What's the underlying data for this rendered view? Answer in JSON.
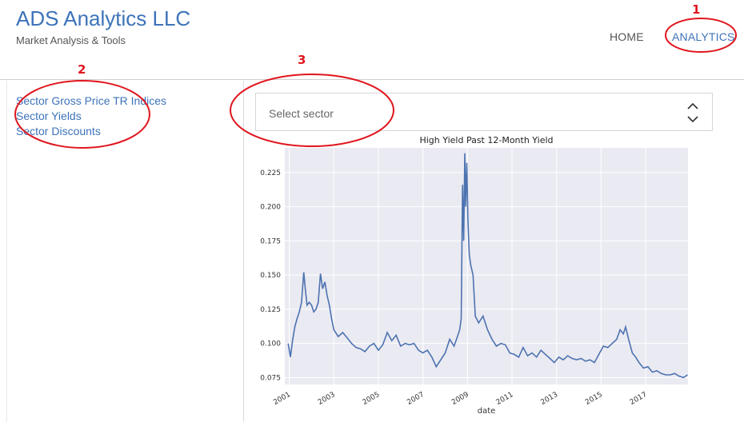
{
  "header": {
    "title": "ADS Analytics LLC",
    "subtitle": "Market Analysis & Tools",
    "nav": {
      "home": "HOME",
      "analytics": "ANALYTICS"
    }
  },
  "sidebar": {
    "links": [
      "Sector Gross Price TR Indices",
      "Sector Yields",
      "Sector Discounts"
    ]
  },
  "selector": {
    "placeholder": "Select sector"
  },
  "annotations": {
    "one": "1",
    "two": "2",
    "three": "3",
    "color": "#e0161e"
  },
  "colors": {
    "accent": "#3d73b9",
    "plot_bg": "#eaeaf2",
    "line": "#4c72b0"
  },
  "chart_data": {
    "type": "line",
    "title": "High Yield Past 12-Month Yield",
    "xlabel": "date",
    "ylabel": "",
    "xlim": [
      2000.8,
      2018.9
    ],
    "ylim": [
      0.07,
      0.243
    ],
    "xticks": [
      "2001",
      "2003",
      "2005",
      "2007",
      "2009",
      "2011",
      "2013",
      "2015",
      "2017"
    ],
    "yticks": [
      "0.075",
      "0.100",
      "0.125",
      "0.150",
      "0.175",
      "0.200",
      "0.225"
    ],
    "grid": true,
    "series": [
      {
        "x": [
          2000.95,
          2001.05,
          2001.15,
          2001.25,
          2001.35,
          2001.45,
          2001.55,
          2001.65,
          2001.72,
          2001.8,
          2001.9,
          2002.0,
          2002.1,
          2002.2,
          2002.3,
          2002.4,
          2002.5,
          2002.6,
          2002.7,
          2002.8,
          2002.9,
          2003.0,
          2003.2,
          2003.4,
          2003.6,
          2003.8,
          2004.0,
          2004.2,
          2004.4,
          2004.6,
          2004.8,
          2005.0,
          2005.2,
          2005.4,
          2005.6,
          2005.8,
          2006.0,
          2006.2,
          2006.4,
          2006.6,
          2006.8,
          2007.0,
          2007.2,
          2007.4,
          2007.6,
          2007.8,
          2008.0,
          2008.2,
          2008.4,
          2008.55,
          2008.65,
          2008.72,
          2008.78,
          2008.83,
          2008.88,
          2008.92,
          2008.97,
          2009.02,
          2009.08,
          2009.15,
          2009.25,
          2009.35,
          2009.5,
          2009.7,
          2009.9,
          2010.1,
          2010.3,
          2010.5,
          2010.7,
          2010.9,
          2011.1,
          2011.3,
          2011.5,
          2011.7,
          2011.9,
          2012.1,
          2012.3,
          2012.5,
          2012.7,
          2012.9,
          2013.1,
          2013.3,
          2013.5,
          2013.7,
          2013.9,
          2014.1,
          2014.3,
          2014.5,
          2014.7,
          2014.9,
          2015.1,
          2015.3,
          2015.5,
          2015.7,
          2015.85,
          2016.0,
          2016.1,
          2016.25,
          2016.4,
          2016.55,
          2016.7,
          2016.9,
          2017.1,
          2017.3,
          2017.5,
          2017.7,
          2017.9,
          2018.1,
          2018.3,
          2018.5,
          2018.7,
          2018.88
        ],
        "y": [
          0.1,
          0.09,
          0.102,
          0.112,
          0.118,
          0.123,
          0.13,
          0.152,
          0.14,
          0.128,
          0.13,
          0.128,
          0.123,
          0.125,
          0.13,
          0.151,
          0.14,
          0.145,
          0.135,
          0.128,
          0.118,
          0.11,
          0.105,
          0.108,
          0.104,
          0.1,
          0.097,
          0.096,
          0.094,
          0.098,
          0.1,
          0.095,
          0.099,
          0.108,
          0.102,
          0.106,
          0.098,
          0.1,
          0.099,
          0.1,
          0.095,
          0.093,
          0.095,
          0.09,
          0.083,
          0.088,
          0.093,
          0.103,
          0.098,
          0.105,
          0.11,
          0.118,
          0.216,
          0.175,
          0.239,
          0.2,
          0.232,
          0.19,
          0.165,
          0.157,
          0.15,
          0.12,
          0.115,
          0.12,
          0.11,
          0.103,
          0.098,
          0.1,
          0.099,
          0.093,
          0.092,
          0.09,
          0.097,
          0.091,
          0.093,
          0.09,
          0.095,
          0.092,
          0.089,
          0.086,
          0.09,
          0.088,
          0.091,
          0.089,
          0.088,
          0.089,
          0.087,
          0.088,
          0.086,
          0.092,
          0.098,
          0.097,
          0.1,
          0.103,
          0.11,
          0.107,
          0.112,
          0.102,
          0.093,
          0.09,
          0.086,
          0.082,
          0.083,
          0.079,
          0.08,
          0.078,
          0.077,
          0.077,
          0.078,
          0.076,
          0.075,
          0.077
        ]
      }
    ]
  }
}
